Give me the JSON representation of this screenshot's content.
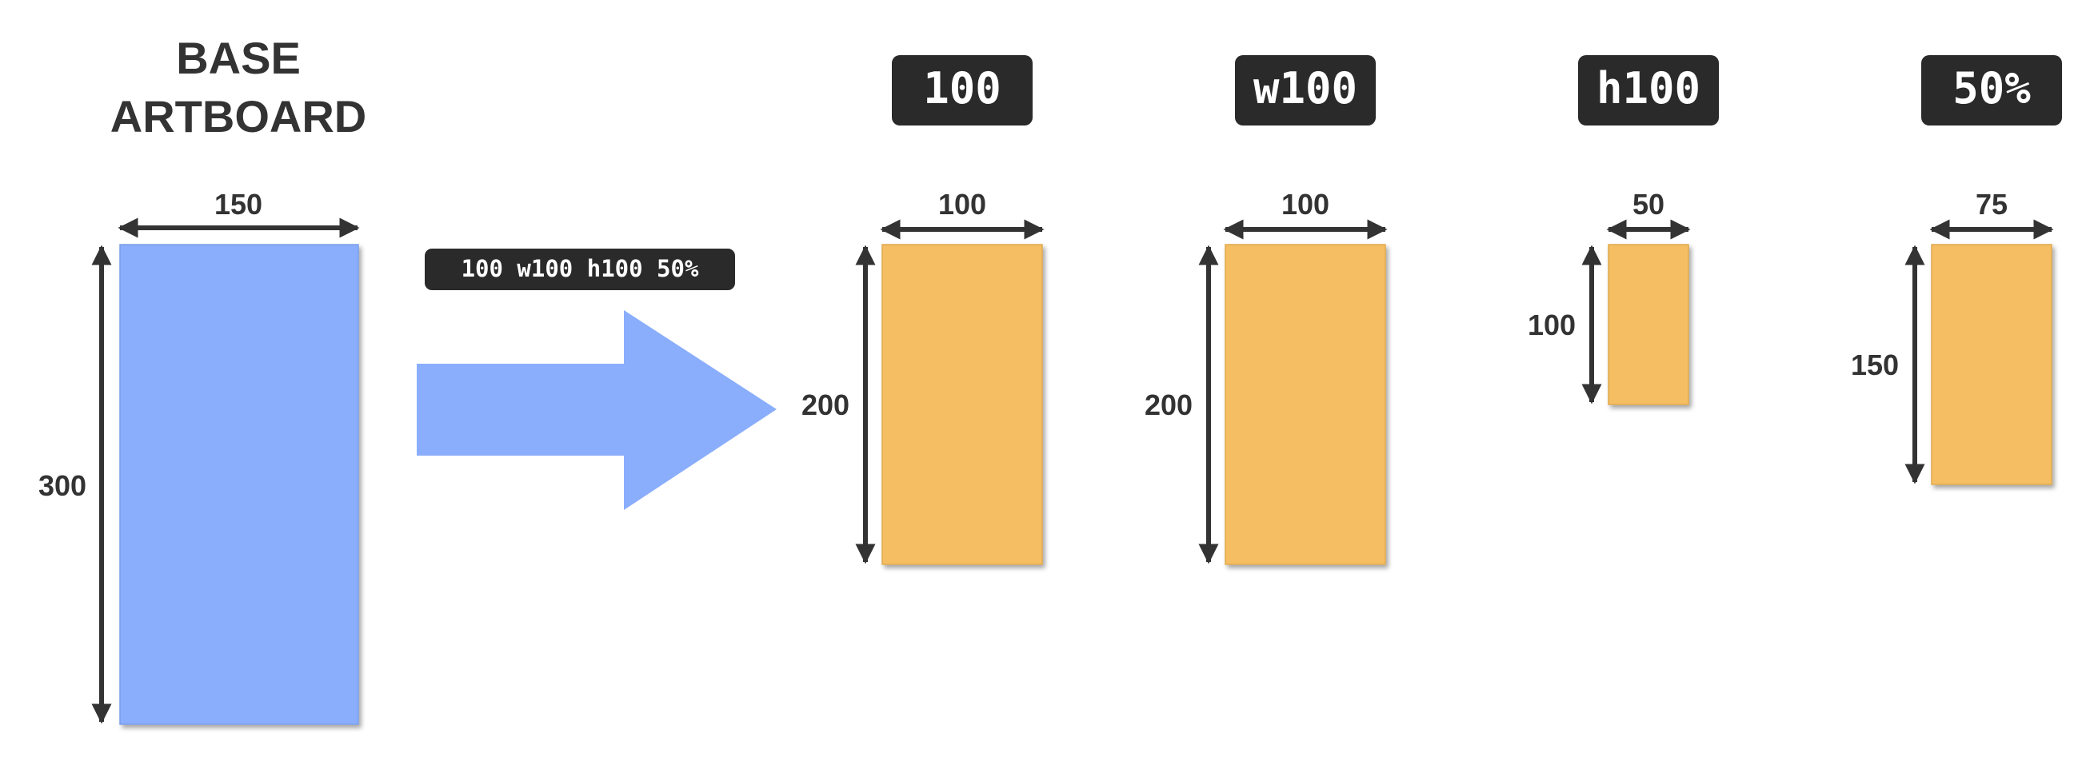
{
  "colors": {
    "base_fill": "#8aaefc",
    "export_fill": "#f5be63",
    "tag_bg": "#2a2a2a",
    "ink": "#333333"
  },
  "base": {
    "title_line1": "BASE",
    "title_line2": "ARTBOARD",
    "width_label": "150",
    "height_label": "300"
  },
  "command": "100 w100 h100 50%",
  "exports": [
    {
      "tag": "100",
      "width_label": "100",
      "height_label": "200"
    },
    {
      "tag": "w100",
      "width_label": "100",
      "height_label": "200"
    },
    {
      "tag": "h100",
      "width_label": "50",
      "height_label": "100"
    },
    {
      "tag": "50%",
      "width_label": "75",
      "height_label": "150"
    }
  ]
}
